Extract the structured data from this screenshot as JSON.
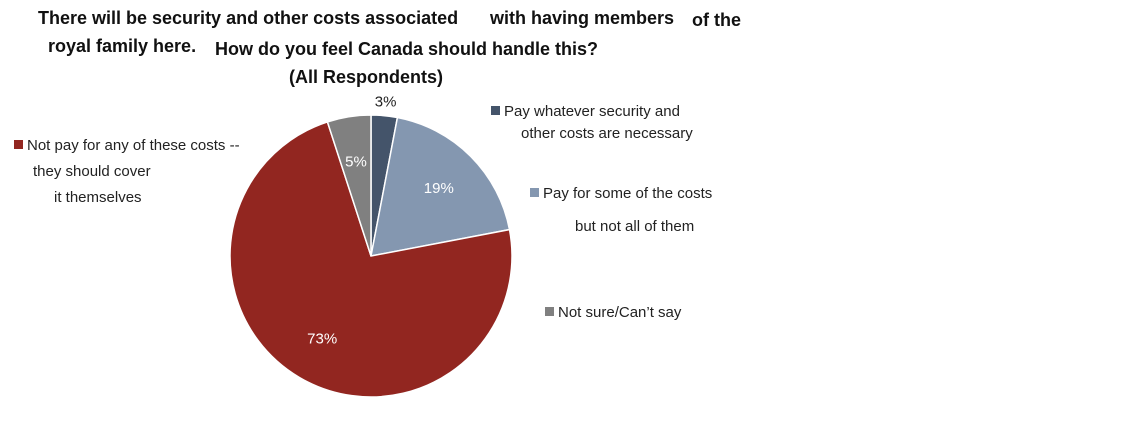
{
  "title": {
    "part1": "There will be security and other costs associated",
    "part2": "with having members",
    "part3": "of the",
    "part4": "royal family here.",
    "part5": "How do you feel Canada should handle this?",
    "part6": "(All Respondents)"
  },
  "chart_data": {
    "type": "pie",
    "title": "There will be security and other costs associated with having members of the royal family here. How do you feel Canada should handle this? (All Respondents)",
    "slices": [
      {
        "label_lines": [
          "Pay whatever security and",
          "other costs are necessary"
        ],
        "value": 3,
        "value_label": "3%",
        "color": "#44546a"
      },
      {
        "label_lines": [
          "Pay for some of the costs",
          "but not all of them"
        ],
        "value": 19,
        "value_label": "19%",
        "color": "#8497b0"
      },
      {
        "label_lines": [
          "Not pay for any of these costs --",
          "they should cover",
          "it themselves"
        ],
        "value": 73,
        "value_label": "73%",
        "color": "#922620"
      },
      {
        "label_lines": [
          "Not sure/Can’t say"
        ],
        "value": 5,
        "value_label": "5%",
        "color": "#808080"
      }
    ]
  }
}
